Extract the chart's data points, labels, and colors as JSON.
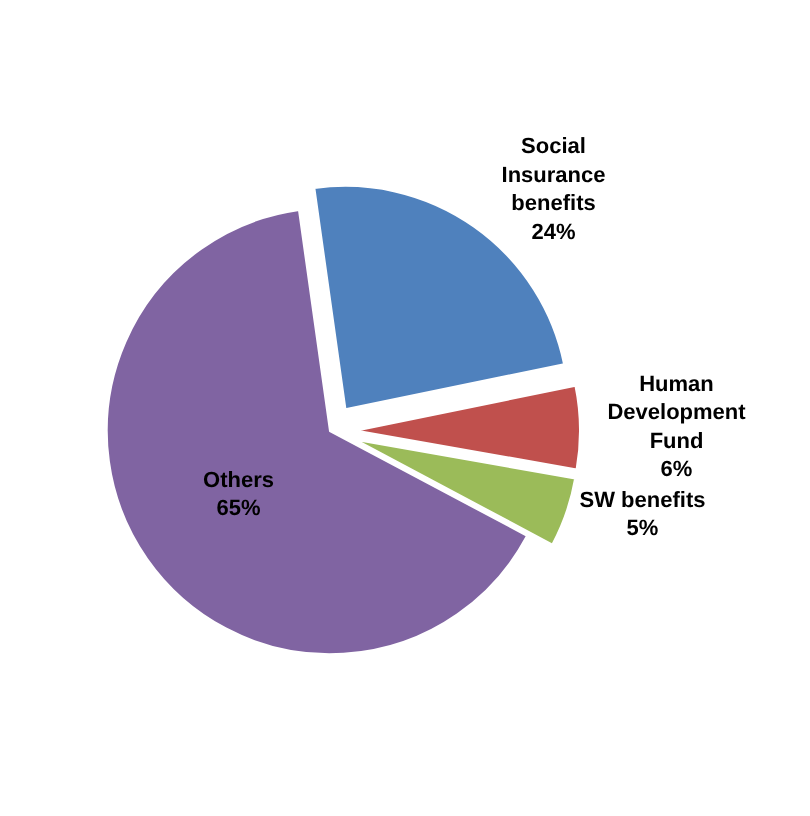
{
  "chart_data": {
    "type": "pie",
    "categories": [
      "Social Insurance benefits",
      "Human Development Fund",
      "SW benefits",
      "Others"
    ],
    "values": [
      24,
      6,
      5,
      65
    ],
    "colors": [
      "#4f81bd",
      "#c0504d",
      "#9bbb59",
      "#8064a2"
    ],
    "value_labels": [
      "24%",
      "6%",
      "5%",
      "65%"
    ],
    "legend": false
  }
}
